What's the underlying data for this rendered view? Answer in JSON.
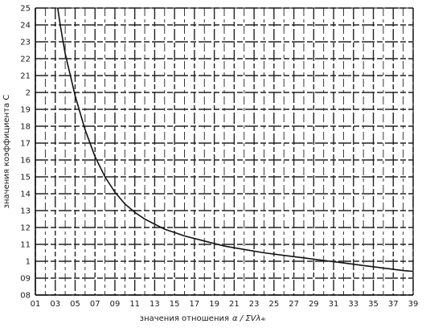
{
  "chart_data": {
    "type": "line",
    "title": "",
    "xlabel": "значения отношения",
    "ylabel": "значения коэффициента С",
    "xlim": [
      0.1,
      3.9
    ],
    "ylim": [
      0.8,
      2.5
    ],
    "x_ticks": [
      "01",
      "03",
      "05",
      "07",
      "09",
      "11",
      "13",
      "15",
      "17",
      "19",
      "21",
      "23",
      "25",
      "27",
      "29",
      "31",
      "33",
      "35",
      "37",
      "39"
    ],
    "y_ticks": [
      "0.8",
      "0.9",
      "1",
      "1.1",
      "1.2",
      "1.3",
      "1.4",
      "1.5",
      "1.6",
      "1.7",
      "1.8",
      "1.9",
      "2",
      "2.1",
      "2.2",
      "2.3",
      "2.4",
      "2.5"
    ],
    "y_tick_labels": [
      "08",
      "09",
      "1",
      "11",
      "12",
      "13",
      "14",
      "15",
      "16",
      "17",
      "18",
      "19",
      "2",
      "21",
      "22",
      "23",
      "24",
      "25"
    ],
    "grid": true,
    "series": [
      {
        "x": [
          0.32,
          0.35,
          0.4,
          0.5,
          0.6,
          0.7,
          0.8,
          0.9,
          1.0,
          1.1,
          1.2,
          1.3,
          1.4,
          1.5,
          1.6,
          1.8,
          2.0,
          2.2,
          2.4,
          2.6,
          2.8,
          3.0,
          3.2,
          3.4,
          3.6,
          3.8,
          3.9
        ],
        "y": [
          2.52,
          2.4,
          2.23,
          1.98,
          1.78,
          1.62,
          1.5,
          1.41,
          1.34,
          1.29,
          1.25,
          1.22,
          1.19,
          1.17,
          1.15,
          1.12,
          1.09,
          1.07,
          1.05,
          1.035,
          1.02,
          1.005,
          0.99,
          0.975,
          0.96,
          0.945,
          0.94
        ]
      }
    ],
    "colors": {
      "line": "#111111",
      "grid": "#222222",
      "text": "#1a1a1a",
      "background": "#ffffff"
    }
  }
}
